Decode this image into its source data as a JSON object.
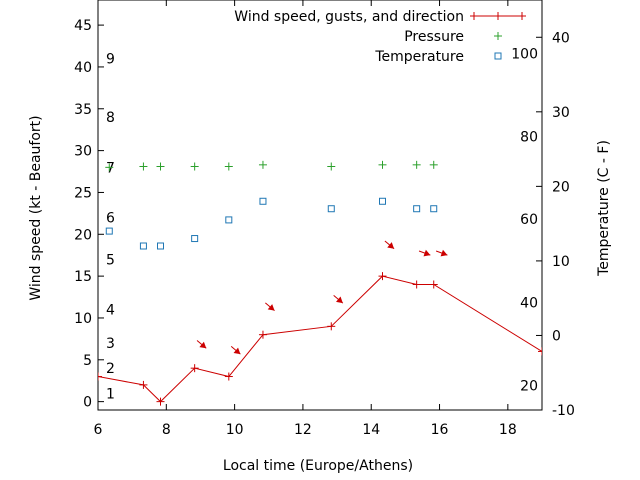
{
  "chart_data": {
    "type": "line",
    "xlabel": "Local time (Europe/Athens)",
    "ylabel": "Wind speed (kt - Beaufort)",
    "y2label": "Temperature (C - F)",
    "xlim": [
      6,
      19
    ],
    "ylim": [
      -1,
      48
    ],
    "y2lim": [
      -10,
      45
    ],
    "x_ticks": [
      6,
      8,
      10,
      12,
      14,
      16,
      18
    ],
    "y_ticks": [
      0,
      5,
      10,
      15,
      20,
      25,
      30,
      35,
      40,
      45
    ],
    "y2_ticks": [
      -10,
      0,
      10,
      20,
      30,
      40
    ],
    "beaufort_labels": [
      {
        "label": "1",
        "y": 1
      },
      {
        "label": "2",
        "y": 4
      },
      {
        "label": "3",
        "y": 7
      },
      {
        "label": "4",
        "y": 11
      },
      {
        "label": "5",
        "y": 17
      },
      {
        "label": "6",
        "y": 22
      },
      {
        "label": "7",
        "y": 28
      },
      {
        "label": "8",
        "y": 34
      },
      {
        "label": "9",
        "y": 41
      }
    ],
    "fahrenheit_labels": [
      {
        "label": "20",
        "y2": -6.7
      },
      {
        "label": "40",
        "y2": 4.4
      },
      {
        "label": "60",
        "y2": 15.6
      },
      {
        "label": "80",
        "y2": 26.7
      },
      {
        "label": "100",
        "y2": 37.8
      }
    ],
    "legend_position": "top-right",
    "series": [
      {
        "name": "Wind speed, gusts, and direction",
        "axis": "y",
        "style": "line-plus",
        "color": "#cc0000",
        "x": [
          6.0,
          7.33,
          7.83,
          8.83,
          9.83,
          10.83,
          12.83,
          14.33,
          15.33,
          15.83,
          19.0
        ],
        "y": [
          3,
          2,
          0,
          4,
          3,
          8,
          9,
          15,
          14,
          14,
          6
        ],
        "directions": [
          {
            "x": 8.9,
            "y": 7.3,
            "angle": 40
          },
          {
            "x": 9.9,
            "y": 6.6,
            "angle": 40
          },
          {
            "x": 10.9,
            "y": 11.8,
            "angle": 40
          },
          {
            "x": 12.9,
            "y": 12.7,
            "angle": 40
          },
          {
            "x": 14.4,
            "y": 19.2,
            "angle": 40
          },
          {
            "x": 15.4,
            "y": 18.0,
            "angle": 20
          },
          {
            "x": 15.9,
            "y": 18.0,
            "angle": 20
          }
        ]
      },
      {
        "name": "Pressure",
        "axis": "y",
        "style": "plus",
        "color": "#2ca02c",
        "x": [
          6.33,
          7.33,
          7.83,
          8.83,
          9.83,
          10.83,
          12.83,
          14.33,
          15.33,
          15.83
        ],
        "y": [
          28.0,
          28.1,
          28.1,
          28.1,
          28.1,
          28.3,
          28.1,
          28.3,
          28.3,
          28.3
        ]
      },
      {
        "name": "Temperature",
        "axis": "y2",
        "style": "square",
        "color": "#1f77b4",
        "x": [
          6.33,
          7.33,
          7.83,
          8.83,
          9.83,
          10.83,
          12.83,
          14.33,
          15.33,
          15.83
        ],
        "y": [
          14,
          12,
          12,
          13,
          15.5,
          18,
          17,
          18,
          17,
          17
        ]
      }
    ]
  }
}
